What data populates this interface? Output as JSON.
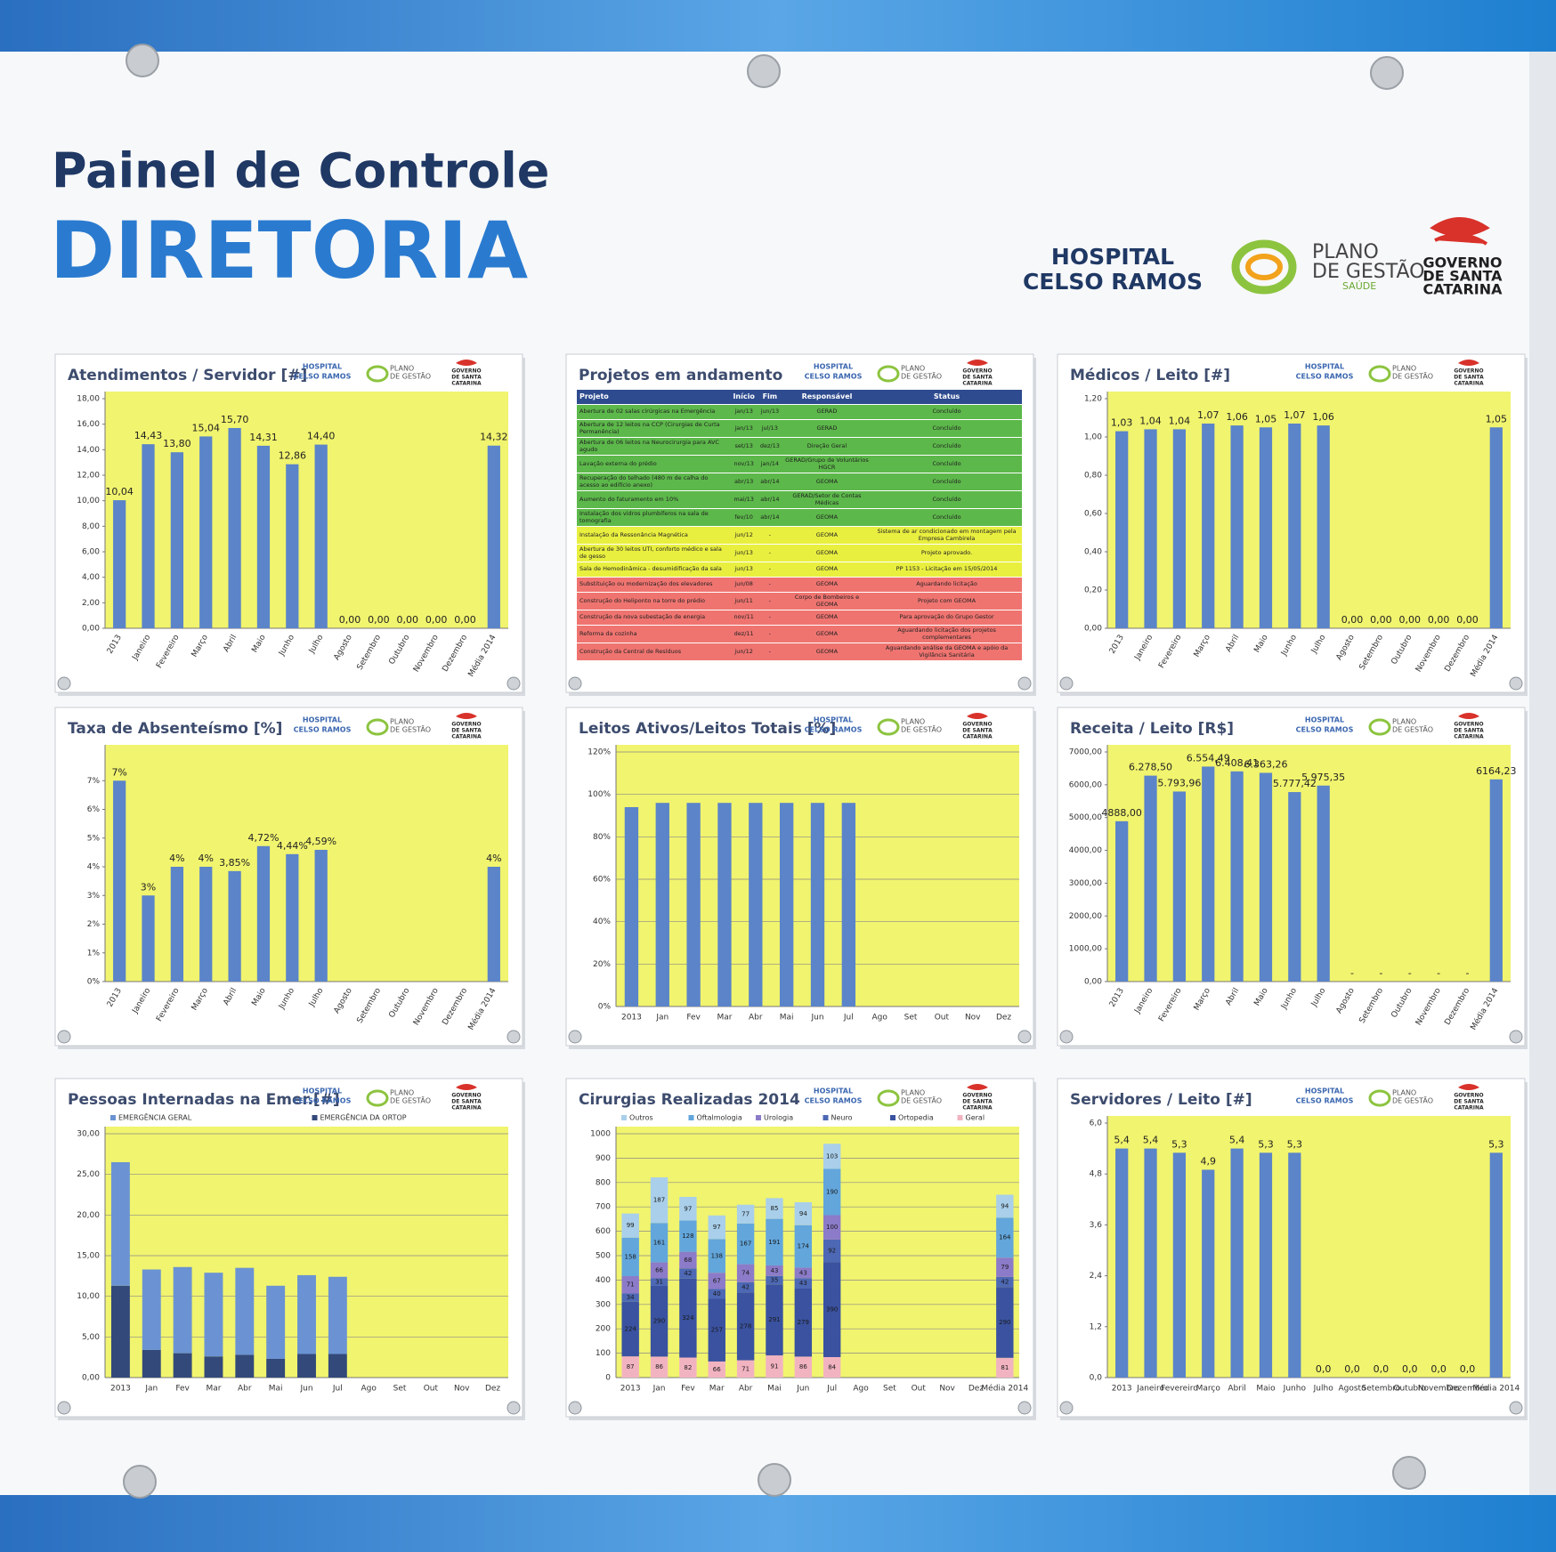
{
  "header": {
    "title": "Painel de Controle",
    "subtitle": "DIRETORIA",
    "hospital_lines": [
      "HOSPITAL",
      "CELSO RAMOS"
    ],
    "plano_lines": [
      "PLANO",
      "DE GESTÃO"
    ],
    "plano_sub": "SAÚDE",
    "governo_lines": [
      "GOVERNO",
      "DE SANTA",
      "CATARINA"
    ]
  },
  "projects": {
    "title": "Projetos em andamento",
    "columns": [
      "Projeto",
      "Início",
      "Fim",
      "Responsável",
      "Status"
    ],
    "rows": [
      [
        "Abertura de 02 salas cirúrgicas na Emergência",
        "jan/13",
        "jun/13",
        "GERAD",
        "Concluído"
      ],
      [
        "Abertura de 12 leitos na CCP (Cirurgias de Curta Permanência)",
        "jan/13",
        "jul/13",
        "GERAD",
        "Concluído"
      ],
      [
        "Abertura de 06 leitos na Neurocirurgia para AVC agudo",
        "set/13",
        "dez/13",
        "Direção Geral",
        "Concluído"
      ],
      [
        "Lavação externa do prédio",
        "nov/13",
        "jan/14",
        "GERAD/Grupo de Voluntários HGCR",
        "Concluído"
      ],
      [
        "Recuperação do telhado (480 m de calha do acesso ao edifício anexo)",
        "abr/13",
        "abr/14",
        "GEOMA",
        "Concluído"
      ],
      [
        "Aumento do faturamento em 10%",
        "mai/13",
        "abr/14",
        "GERAD/Setor de Contas Médicas",
        "Concluído"
      ],
      [
        "Instalação dos vidros plumbíferos na sala de tomografia",
        "fev/10",
        "abr/14",
        "GEOMA",
        "Concluído"
      ],
      [
        "Instalação da Ressonância Magnética",
        "jun/12",
        "-",
        "GEOMA",
        "Sistema de ar condicionado em montagem pela Empresa Cambirela"
      ],
      [
        "Abertura de 30 leitos UTI, conforto médico e sala de gesso",
        "jun/13",
        "-",
        "GEOMA",
        "Projeto aprovado."
      ],
      [
        "Sala de Hemodinâmica - desumidificação da sala",
        "jun/13",
        "-",
        "GEOMA",
        "PP 1153 - Licitação em 15/05/2014"
      ],
      [
        "Substituição ou modernização dos elevadores",
        "jun/08",
        "-",
        "GEOMA",
        "Aguardando licitação"
      ],
      [
        "Construção do Heliponto na torre do prédio",
        "jun/11",
        "-",
        "Corpo de Bombeiros e GEOMA",
        "Projeto com GEOMA"
      ],
      [
        "Construção da nova subestação de energia",
        "nov/11",
        "-",
        "GEOMA",
        "Para aprovação do Grupo Gestor"
      ],
      [
        "Reforma da cozinha",
        "dez/11",
        "-",
        "GEOMA",
        "Aguardando licitação dos projetos complementares"
      ],
      [
        "Construção da Central de Resíduos",
        "jun/12",
        "-",
        "GEOMA",
        "Aguardando análise da GEOMA e apóio da Vigilância Sanitária"
      ]
    ],
    "row_colors": [
      "#5cb84a",
      "#5cb84a",
      "#5cb84a",
      "#5cb84a",
      "#5cb84a",
      "#5cb84a",
      "#5cb84a",
      "#e9ef3f",
      "#e9ef3f",
      "#e9ef3f",
      "#ef7470",
      "#ef7470",
      "#ef7470",
      "#ef7470",
      "#ef7470"
    ]
  },
  "chart_data": [
    {
      "type": "bar",
      "title": "Atendimentos / Servidor [#]",
      "categories": [
        "2013",
        "Janeiro",
        "Fevereiro",
        "Março",
        "Abril",
        "Maio",
        "Junho",
        "Julho",
        "Agosto",
        "Setembro",
        "Outubro",
        "Novembro",
        "Dezembro",
        "Média 2014"
      ],
      "values": [
        10.04,
        14.43,
        13.8,
        15.04,
        15.7,
        14.31,
        12.86,
        14.4,
        0,
        0,
        0,
        0,
        0,
        14.32
      ],
      "value_labels": [
        "10,04",
        "14,43",
        "13,80",
        "15,04",
        "15,70",
        "14,31",
        "12,86",
        "14,40",
        "0,00",
        "0,00",
        "0,00",
        "0,00",
        "0,00",
        "14,32"
      ],
      "color": "#5b84c9",
      "plot_color": "#f1f46e",
      "grid": false,
      "data_labels": true,
      "rotate_labels": true,
      "ylim": [
        0,
        18
      ],
      "yticks": [
        {
          "value": 0,
          "label": "0,00"
        },
        {
          "value": 2,
          "label": "2,00"
        },
        {
          "value": 4,
          "label": "4,00"
        },
        {
          "value": 6,
          "label": "6,00"
        },
        {
          "value": 8,
          "label": "8,00"
        },
        {
          "value": 10,
          "label": "10,00"
        },
        {
          "value": 12,
          "label": "12,00"
        },
        {
          "value": 14,
          "label": "14,00"
        },
        {
          "value": 16,
          "label": "16,00"
        },
        {
          "value": 18,
          "label": "18,00"
        }
      ]
    },
    {
      "type": "bar",
      "title": "Médicos / Leito [#]",
      "categories": [
        "2013",
        "Janeiro",
        "Fevereiro",
        "Março",
        "Abril",
        "Maio",
        "Junho",
        "Julho",
        "Agosto",
        "Setembro",
        "Outubro",
        "Novembro",
        "Dezembro",
        "Média 2014"
      ],
      "values": [
        1.03,
        1.04,
        1.04,
        1.07,
        1.06,
        1.05,
        1.07,
        1.06,
        0,
        0,
        0,
        0,
        0,
        1.05
      ],
      "value_labels": [
        "1,03",
        "1,04",
        "1,04",
        "1,07",
        "1,06",
        "1,05",
        "1,07",
        "1,06",
        "0,00",
        "0,00",
        "0,00",
        "0,00",
        "0,00",
        "1,05"
      ],
      "color": "#5b84c9",
      "plot_color": "#f1f46e",
      "grid": false,
      "data_labels": true,
      "rotate_labels": true,
      "ylim": [
        0,
        1.2
      ],
      "yticks": [
        {
          "value": 0,
          "label": "0,00"
        },
        {
          "value": 0.2,
          "label": "0,20"
        },
        {
          "value": 0.4,
          "label": "0,40"
        },
        {
          "value": 0.6,
          "label": "0,60"
        },
        {
          "value": 0.8,
          "label": "0,80"
        },
        {
          "value": 1,
          "label": "1,00"
        },
        {
          "value": 1.2,
          "label": "1,20"
        }
      ]
    },
    {
      "type": "bar",
      "title": "Taxa de Absenteísmo [%]",
      "categories": [
        "2013",
        "Janeiro",
        "Fevereiro",
        "Março",
        "Abril",
        "Maio",
        "Junho",
        "Julho",
        "Agosto",
        "Setembro",
        "Outubro",
        "Novembro",
        "Dezembro",
        "Média 2014"
      ],
      "values": [
        7,
        3,
        4,
        4,
        3.85,
        4.72,
        4.44,
        4.59,
        null,
        null,
        null,
        null,
        null,
        4
      ],
      "value_labels": [
        "7%",
        "3%",
        "4%",
        "4%",
        "3,85%",
        "4,72%",
        "4,44%",
        "4,59%",
        null,
        null,
        null,
        null,
        null,
        "4%"
      ],
      "color": "#5b84c9",
      "plot_color": "#f1f46e",
      "grid": false,
      "data_labels": true,
      "rotate_labels": true,
      "ylim": [
        0,
        8
      ],
      "yticks": [
        {
          "value": 0,
          "label": "0%"
        },
        {
          "value": 1,
          "label": "1%"
        },
        {
          "value": 2,
          "label": "2%"
        },
        {
          "value": 3,
          "label": "3%"
        },
        {
          "value": 4,
          "label": "4%"
        },
        {
          "value": 5,
          "label": "5%"
        },
        {
          "value": 6,
          "label": "6%"
        },
        {
          "value": 7,
          "label": "7%"
        }
      ]
    },
    {
      "type": "bar",
      "title": "Leitos Ativos/Leitos Totais [%]",
      "categories": [
        "2013",
        "Jan",
        "Fev",
        "Mar",
        "Abr",
        "Mai",
        "Jun",
        "Jul",
        "Ago",
        "Set",
        "Out",
        "Nov",
        "Dez"
      ],
      "values": [
        94,
        96,
        96,
        96,
        96,
        96,
        96,
        96,
        null,
        null,
        null,
        null,
        null
      ],
      "color": "#5b84c9",
      "plot_color": "#f1f46e",
      "grid": true,
      "data_labels": false,
      "rotate_labels": false,
      "ylim": [
        0,
        120
      ],
      "yticks": [
        {
          "value": 0,
          "label": "0%"
        },
        {
          "value": 20,
          "label": "20%"
        },
        {
          "value": 40,
          "label": "40%"
        },
        {
          "value": 60,
          "label": "60%"
        },
        {
          "value": 80,
          "label": "80%"
        },
        {
          "value": 100,
          "label": "100%"
        },
        {
          "value": 120,
          "label": "120%"
        }
      ]
    },
    {
      "type": "bar",
      "title": "Receita / Leito [R$]",
      "categories": [
        "2013",
        "Janeiro",
        "Fevereiro",
        "Março",
        "Abril",
        "Maio",
        "Junho",
        "Julho",
        "Agosto",
        "Setembro",
        "Outubro",
        "Novembro",
        "Dezembro",
        "Média 2014"
      ],
      "values": [
        4888.0,
        6278.5,
        5793.96,
        6554.49,
        6408.41,
        6363.26,
        5777.42,
        5975.35,
        0,
        0,
        0,
        0,
        0,
        6164.23
      ],
      "value_labels": [
        "4888,00",
        "6.278,50",
        "5.793,96",
        "6.554,49",
        "6.408,41",
        "6.363,26",
        "5.777,42",
        "5.975,35",
        "-",
        "-",
        "-",
        "-",
        "-",
        "6164,23"
      ],
      "color": "#5b84c9",
      "plot_color": "#f1f46e",
      "grid": false,
      "data_labels": true,
      "rotate_labels": true,
      "ylim": [
        0,
        7000
      ],
      "yticks": [
        {
          "value": 0,
          "label": "0,00"
        },
        {
          "value": 1000,
          "label": "1000,00"
        },
        {
          "value": 2000,
          "label": "2000,00"
        },
        {
          "value": 3000,
          "label": "3000,00"
        },
        {
          "value": 4000,
          "label": "4000,00"
        },
        {
          "value": 5000,
          "label": "5000,00"
        },
        {
          "value": 6000,
          "label": "6000,00"
        },
        {
          "value": 7000,
          "label": "7000,00"
        }
      ]
    },
    {
      "type": "stacked-bar",
      "title": "Pessoas Internadas na Emer.[#]",
      "categories": [
        "2013",
        "Jan",
        "Fev",
        "Mar",
        "Abr",
        "Mai",
        "Jun",
        "Jul",
        "Ago",
        "Set",
        "Out",
        "Nov",
        "Dez"
      ],
      "series": [
        {
          "name": "EMERGÊNCIA GERAL",
          "color": "#6b93d3",
          "values": [
            15.2,
            9.9,
            10.6,
            10.3,
            10.7,
            9.0,
            9.7,
            9.5,
            null,
            null,
            null,
            null,
            null
          ]
        },
        {
          "name": "EMERGÊNCIA DA ORTOP",
          "color": "#33497a",
          "values": [
            11.3,
            3.4,
            3.0,
            2.6,
            2.8,
            2.3,
            2.9,
            2.9,
            null,
            null,
            null,
            null,
            null
          ]
        }
      ],
      "plot_color": "#f1f46e",
      "grid": true,
      "data_labels": false,
      "rotate_labels": false,
      "ylim": [
        0,
        30
      ],
      "yticks": [
        {
          "value": 0,
          "label": "0,00"
        },
        {
          "value": 5,
          "label": "5,00"
        },
        {
          "value": 10,
          "label": "10,00"
        },
        {
          "value": 15,
          "label": "15,00"
        },
        {
          "value": 20,
          "label": "20,00"
        },
        {
          "value": 25,
          "label": "25,00"
        },
        {
          "value": 30,
          "label": "30,00"
        }
      ]
    },
    {
      "type": "stacked-bar",
      "title": "Cirurgias Realizadas 2014",
      "categories": [
        "2013",
        "Jan",
        "Fev",
        "Mar",
        "Abr",
        "Mai",
        "Jun",
        "Jul",
        "Ago",
        "Set",
        "Out",
        "Nov",
        "Dez",
        "Média 2014"
      ],
      "series": [
        {
          "name": "Outros",
          "color": "#a9cfea",
          "values": [
            99,
            187,
            97,
            97,
            77,
            85,
            94,
            103,
            null,
            null,
            null,
            null,
            null,
            94
          ]
        },
        {
          "name": "Oftalmologia",
          "color": "#62a6dc",
          "values": [
            158,
            161,
            128,
            138,
            167,
            191,
            174,
            190,
            null,
            null,
            null,
            null,
            null,
            164
          ]
        },
        {
          "name": "Urologia",
          "color": "#8c7bc9",
          "values": [
            71,
            66,
            68,
            67,
            74,
            43,
            43,
            100,
            null,
            null,
            null,
            null,
            null,
            79
          ]
        },
        {
          "name": "Neuro",
          "color": "#4d68b5",
          "values": [
            34,
            31,
            42,
            40,
            42,
            35,
            43,
            92,
            null,
            null,
            null,
            null,
            null,
            42
          ]
        },
        {
          "name": "Ortopedia",
          "color": "#3a52a0",
          "values": [
            224,
            290,
            324,
            257,
            278,
            291,
            279,
            390,
            null,
            null,
            null,
            null,
            null,
            290
          ]
        },
        {
          "name": "Geral",
          "color": "#f2b3c1",
          "values": [
            87,
            86,
            82,
            66,
            71,
            91,
            86,
            84,
            null,
            null,
            null,
            null,
            null,
            81
          ]
        }
      ],
      "plot_color": "#f1f46e",
      "grid": true,
      "data_labels": true,
      "rotate_labels": false,
      "ylim": [
        0,
        1000
      ],
      "yticks": [
        0,
        100,
        200,
        300,
        400,
        500,
        600,
        700,
        800,
        900,
        1000
      ]
    },
    {
      "type": "bar",
      "title": "Servidores / Leito [#]",
      "categories": [
        "2013",
        "Janeiro",
        "Fevereiro",
        "Março",
        "Abril",
        "Maio",
        "Junho",
        "Julho",
        "Agosto",
        "Setembro",
        "Outubro",
        "Novembro",
        "Dezembro",
        "Média 2014"
      ],
      "values": [
        5.4,
        5.4,
        5.3,
        4.9,
        5.4,
        5.3,
        5.3,
        0,
        0,
        0,
        0,
        0,
        0,
        5.3
      ],
      "value_labels": [
        "5,4",
        "5,4",
        "5,3",
        "4,9",
        "5,4",
        "5,3",
        "5,3",
        "0,0",
        "0,0",
        "0,0",
        "0,0",
        "0,0",
        "0,0",
        "5,3"
      ],
      "color": "#5b84c9",
      "plot_color": "#f1f46e",
      "grid": false,
      "data_labels": true,
      "rotate_labels": false,
      "ylim": [
        0,
        6
      ],
      "yticks": [
        {
          "value": 0,
          "label": "0,0"
        },
        {
          "value": 1.2,
          "label": "1,2"
        },
        {
          "value": 2.4,
          "label": "2,4"
        },
        {
          "value": 3.6,
          "label": "3,6"
        },
        {
          "value": 4.8,
          "label": "4,8"
        },
        {
          "value": 6,
          "label": "6,0"
        }
      ]
    }
  ]
}
